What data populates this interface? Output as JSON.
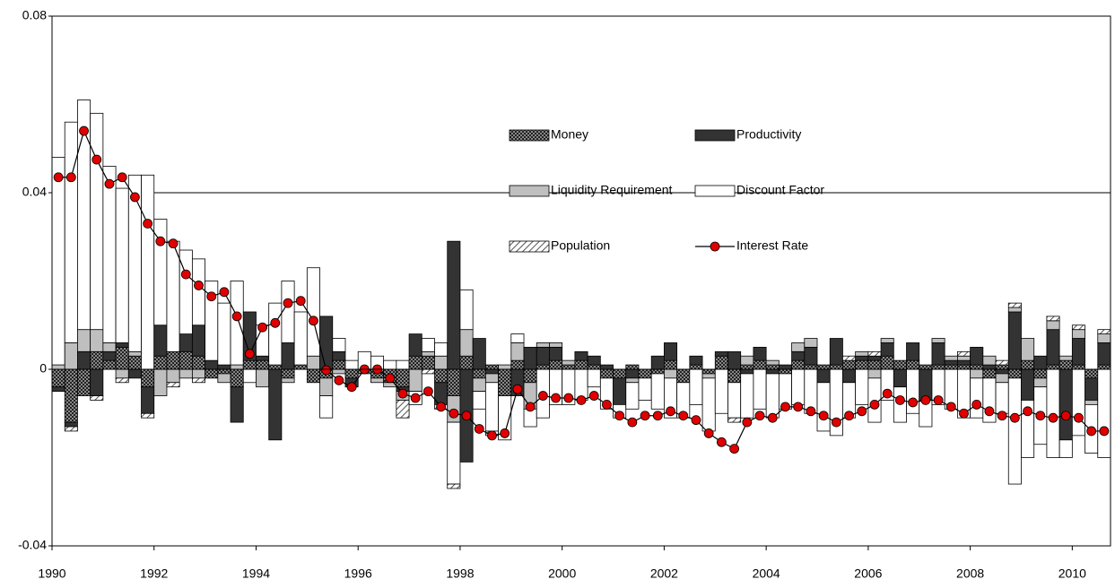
{
  "chart_data": {
    "type": "stacked-bar-line",
    "x": [
      1990.125,
      1990.375,
      1990.625,
      1990.875,
      1991.125,
      1991.375,
      1991.625,
      1991.875,
      1992.125,
      1992.375,
      1992.625,
      1992.875,
      1993.125,
      1993.375,
      1993.625,
      1993.875,
      1994.125,
      1994.375,
      1994.625,
      1994.875,
      1995.125,
      1995.375,
      1995.625,
      1995.875,
      1996.125,
      1996.375,
      1996.625,
      1996.875,
      1997.125,
      1997.375,
      1997.625,
      1997.875,
      1998.125,
      1998.375,
      1998.625,
      1998.875,
      1999.125,
      1999.375,
      1999.625,
      1999.875,
      2000.125,
      2000.375,
      2000.625,
      2000.875,
      2001.125,
      2001.375,
      2001.625,
      2001.875,
      2002.125,
      2002.375,
      2002.625,
      2002.875,
      2003.125,
      2003.375,
      2003.625,
      2003.875,
      2004.125,
      2004.375,
      2004.625,
      2004.875,
      2005.125,
      2005.375,
      2005.625,
      2005.875,
      2006.125,
      2006.375,
      2006.625,
      2006.875,
      2007.125,
      2007.375,
      2007.625,
      2007.875,
      2008.125,
      2008.375,
      2008.625,
      2008.875,
      2009.125,
      2009.375,
      2009.625,
      2009.875,
      2010.125,
      2010.375,
      2010.625
    ],
    "series": [
      {
        "name": "Money",
        "color": "#555555",
        "pattern": "dots",
        "kind": "bar",
        "values": [
          -0.004,
          -0.012,
          -0.006,
          0.004,
          0.002,
          0.005,
          0.003,
          -0.004,
          0.003,
          0.004,
          0.004,
          0.003,
          -0.002,
          -0.001,
          -0.004,
          0.002,
          0.002,
          0.001,
          -0.002,
          0.001,
          -0.003,
          -0.002,
          0.002,
          -0.002,
          -0.001,
          -0.002,
          -0.003,
          -0.004,
          0.003,
          0.003,
          -0.003,
          -0.006,
          0.003,
          -0.002,
          0.001,
          -0.006,
          0.002,
          -0.003,
          0.001,
          0.002,
          0.001,
          0.002,
          0.001,
          -0.002,
          -0.002,
          0.001,
          -0.002,
          -0.001,
          0.002,
          -0.003,
          0.001,
          -0.001,
          0.003,
          -0.003,
          0.001,
          0.002,
          0.001,
          -0.001,
          0.002,
          0.001,
          0.001,
          0.001,
          0.002,
          0.002,
          0.002,
          0.003,
          0.002,
          0.002,
          0.001,
          0.001,
          0.001,
          0.001,
          0.001,
          -0.002,
          0.001,
          -0.002,
          0.002,
          -0.002,
          0.001,
          0.002,
          0.001,
          -0.002,
          0.001
        ]
      },
      {
        "name": "Productivity",
        "color": "#333333",
        "kind": "bar",
        "values": [
          -0.001,
          -0.001,
          0.004,
          -0.006,
          0.002,
          0.001,
          -0.002,
          -0.006,
          0.007,
          0.0,
          0.004,
          0.007,
          0.002,
          0.001,
          -0.008,
          0.011,
          0.001,
          -0.016,
          0.006,
          0.0,
          0.0,
          0.012,
          0.002,
          -0.002,
          0.0,
          0.0,
          0.0,
          -0.001,
          0.005,
          0.0,
          -0.005,
          0.029,
          -0.021,
          0.007,
          -0.001,
          0.0,
          -0.006,
          0.005,
          0.004,
          0.003,
          0.0,
          0.002,
          0.002,
          0.001,
          -0.006,
          -0.002,
          0.0,
          0.003,
          0.004,
          0.0,
          0.002,
          0.0,
          0.001,
          0.004,
          -0.001,
          0.003,
          -0.001,
          0.001,
          0.002,
          0.004,
          -0.003,
          0.006,
          -0.003,
          0.001,
          0.001,
          0.003,
          -0.004,
          0.004,
          -0.007,
          0.005,
          0.001,
          0.001,
          0.004,
          0.001,
          -0.001,
          0.013,
          -0.007,
          0.003,
          0.008,
          -0.016,
          0.006,
          -0.005,
          0.005
        ]
      },
      {
        "name": "Liquidity Requirement",
        "color": "#bfbfbf",
        "kind": "bar",
        "values": [
          0.001,
          0.006,
          0.005,
          0.005,
          0.002,
          -0.002,
          0.001,
          0.0,
          -0.006,
          -0.003,
          -0.002,
          -0.002,
          0.0,
          -0.002,
          0.001,
          0.0,
          -0.004,
          0.0,
          -0.001,
          0.0,
          0.003,
          -0.004,
          -0.001,
          0.0,
          0.0,
          -0.001,
          -0.001,
          -0.002,
          -0.005,
          0.001,
          0.003,
          -0.006,
          0.006,
          -0.003,
          -0.002,
          0.001,
          0.004,
          -0.006,
          0.001,
          0.001,
          0.001,
          0.0,
          0.0,
          0.0,
          0.0,
          -0.001,
          0.0,
          0.0,
          -0.002,
          0.0,
          0.0,
          -0.001,
          0.0,
          0.0,
          0.002,
          0.0,
          0.001,
          0.0,
          0.002,
          0.002,
          0.0,
          0.0,
          0.0,
          0.001,
          -0.002,
          0.001,
          0.0,
          0.0,
          0.0,
          0.001,
          0.001,
          0.001,
          -0.002,
          0.002,
          -0.002,
          0.001,
          0.005,
          -0.002,
          0.002,
          0.001,
          0.002,
          -0.001,
          0.002
        ]
      },
      {
        "name": "Discount Factor",
        "color": "#ffffff",
        "kind": "bar",
        "values": [
          0.047,
          0.05,
          0.052,
          0.049,
          0.04,
          0.035,
          0.04,
          0.044,
          0.024,
          0.025,
          0.019,
          0.015,
          0.018,
          0.014,
          0.019,
          -0.003,
          0.007,
          0.014,
          0.014,
          0.012,
          0.02,
          -0.005,
          0.003,
          0.002,
          0.004,
          0.003,
          0.002,
          0.002,
          -0.003,
          0.003,
          0.003,
          -0.014,
          0.009,
          -0.004,
          -0.011,
          -0.01,
          0.002,
          -0.004,
          -0.011,
          -0.008,
          -0.008,
          -0.007,
          -0.004,
          -0.007,
          -0.003,
          -0.006,
          -0.005,
          -0.008,
          -0.009,
          -0.008,
          -0.008,
          -0.012,
          -0.01,
          -0.008,
          -0.01,
          -0.009,
          -0.01,
          -0.008,
          -0.008,
          -0.01,
          -0.011,
          -0.015,
          -0.008,
          -0.008,
          -0.01,
          -0.007,
          -0.008,
          -0.01,
          -0.006,
          -0.008,
          -0.009,
          -0.011,
          -0.009,
          -0.01,
          -0.007,
          -0.024,
          -0.013,
          -0.013,
          -0.02,
          -0.004,
          -0.015,
          -0.011,
          -0.02
        ]
      },
      {
        "name": "Population",
        "color": "#666666",
        "pattern": "hatch",
        "kind": "bar",
        "values": [
          0.0,
          -0.001,
          0.0,
          -0.001,
          0.0,
          -0.001,
          0.0,
          -0.001,
          0.0,
          -0.001,
          0.0,
          -0.001,
          0.0,
          0.0,
          0.0,
          0.0,
          0.0,
          0.0,
          0.0,
          0.0,
          0.0,
          0.0,
          0.0,
          0.0,
          0.0,
          0.0,
          0.0,
          -0.004,
          0.0,
          -0.001,
          -0.001,
          -0.001,
          0.0,
          0.0,
          -0.001,
          0.0,
          0.0,
          0.0,
          0.0,
          0.0,
          0.0,
          0.0,
          0.0,
          0.0,
          0.0,
          0.0,
          0.0,
          0.0,
          0.0,
          0.0,
          0.0,
          0.0,
          0.0,
          -0.001,
          0.0,
          0.0,
          0.0,
          0.0,
          0.0,
          0.0,
          0.0,
          0.0,
          0.001,
          0.0,
          0.001,
          0.0,
          0.0,
          0.0,
          0.0,
          0.0,
          0.0,
          0.001,
          0.0,
          0.0,
          0.001,
          0.001,
          0.0,
          0.0,
          0.001,
          0.0,
          0.001,
          0.0,
          0.001
        ]
      },
      {
        "name": "Interest Rate",
        "color": "#e00000",
        "kind": "line",
        "values": [
          0.0435,
          0.0435,
          0.054,
          0.0475,
          0.042,
          0.0435,
          0.039,
          0.033,
          0.029,
          0.0285,
          0.0215,
          0.019,
          0.0165,
          0.0175,
          0.012,
          0.0035,
          0.0095,
          0.0105,
          0.015,
          0.0155,
          0.011,
          -0.0002,
          -0.0025,
          -0.004,
          0.0,
          0.0,
          -0.002,
          -0.0055,
          -0.0065,
          -0.005,
          -0.0085,
          -0.01,
          -0.0105,
          -0.0135,
          -0.015,
          -0.0145,
          -0.0045,
          -0.0085,
          -0.006,
          -0.0065,
          -0.0065,
          -0.007,
          -0.006,
          -0.008,
          -0.0105,
          -0.012,
          -0.0105,
          -0.0105,
          -0.0095,
          -0.0105,
          -0.0115,
          -0.0145,
          -0.0165,
          -0.018,
          -0.012,
          -0.0105,
          -0.011,
          -0.0085,
          -0.0085,
          -0.0095,
          -0.0105,
          -0.012,
          -0.0105,
          -0.0095,
          -0.008,
          -0.0055,
          -0.007,
          -0.0075,
          -0.007,
          -0.007,
          -0.0085,
          -0.01,
          -0.008,
          -0.0095,
          -0.0105,
          -0.011,
          -0.0095,
          -0.0105,
          -0.011,
          -0.0105,
          -0.011,
          -0.014,
          -0.014
        ]
      }
    ],
    "xlim": [
      1990,
      2010.75
    ],
    "xticks": [
      1990,
      1992,
      1994,
      1996,
      1998,
      2000,
      2002,
      2004,
      2006,
      2008,
      2010
    ],
    "ylim": [
      -0.04,
      0.08
    ],
    "yticks": [
      -0.04,
      0,
      0.04,
      0.08
    ],
    "grid": true
  }
}
